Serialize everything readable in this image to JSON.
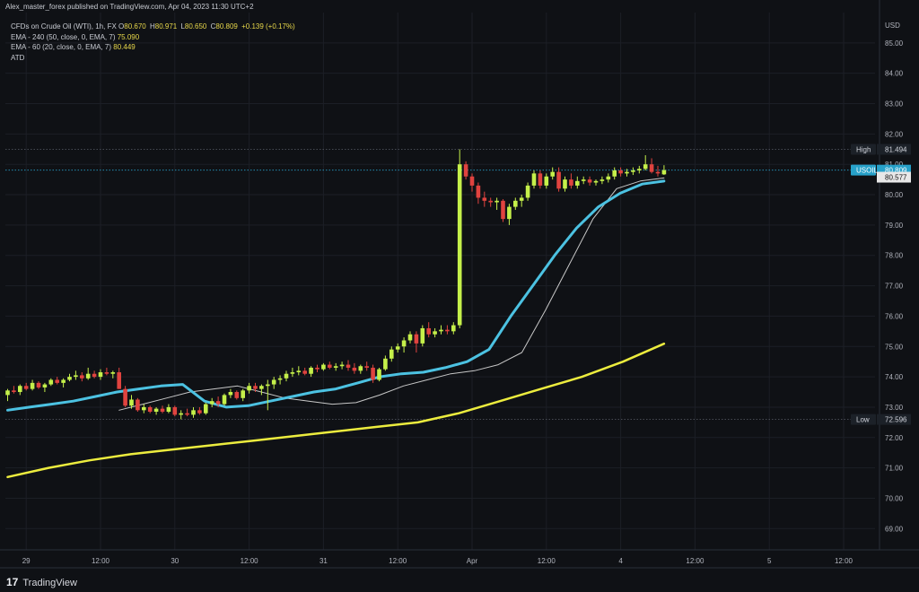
{
  "header": {
    "published": "Alex_master_forex published on TradingView.com, Apr 04, 2023 11:30 UTC+2"
  },
  "legend": {
    "symbol": "CFDs on Crude Oil (WTI), 1h, FX",
    "ohlc": [
      {
        "label": "O",
        "value": "80.670"
      },
      {
        "label": "H",
        "value": "80.971"
      },
      {
        "label": "L",
        "value": "80.650"
      },
      {
        "label": "C",
        "value": "80.809"
      }
    ],
    "change": "+0.139 (+0.17%)",
    "ema240_label": "EMA - 240 (50, close, 0, EMA, 7)",
    "ema240_value": "75.090",
    "ema60_label": "EMA - 60 (20, close, 0, EMA, 7)",
    "ema60_value": "80.449",
    "atd_label": "ATD"
  },
  "footer": {
    "brand": "TradingView"
  },
  "colors": {
    "background": "#0f1115",
    "bull": "#c5f04a",
    "bear": "#e0433f",
    "ema240": "#ecec3e",
    "ema60": "#4cc2e2",
    "ema_thin": "#c8c8c8",
    "axis_text": "#b2b5be",
    "usoil_tag": "#27a1c9"
  },
  "chart_data": {
    "type": "candlestick",
    "ylim": [
      68.3,
      86.0
    ],
    "y_axis_unit": "USD",
    "y_ticks": [
      "69.00",
      "70.00",
      "71.00",
      "72.00",
      "73.00",
      "74.00",
      "75.00",
      "76.00",
      "77.00",
      "78.00",
      "79.00",
      "80.00",
      "81.00",
      "82.00",
      "83.00",
      "84.00",
      "85.00"
    ],
    "x_ticks": [
      "29",
      "12:00",
      "30",
      "12:00",
      "31",
      "12:00",
      "Apr",
      "12:00",
      "4",
      "12:00",
      "5",
      "12:00"
    ],
    "x_tick_index": [
      3,
      15,
      27,
      39,
      51,
      63,
      75,
      87,
      99,
      111,
      123,
      135
    ],
    "high_label": "High",
    "high_value": "81.494",
    "low_label": "Low",
    "low_value": "72.596",
    "usoil_label": "USOIL",
    "usoil_value": "80.809",
    "ema60_axis_value": "80.577",
    "candles": [
      [
        73.4,
        73.6,
        73.2,
        73.55
      ],
      [
        73.55,
        73.7,
        73.45,
        73.5
      ],
      [
        73.5,
        73.75,
        73.4,
        73.7
      ],
      [
        73.7,
        73.8,
        73.55,
        73.6
      ],
      [
        73.6,
        73.9,
        73.55,
        73.8
      ],
      [
        73.8,
        73.85,
        73.6,
        73.65
      ],
      [
        73.65,
        73.8,
        73.5,
        73.75
      ],
      [
        73.75,
        73.95,
        73.7,
        73.9
      ],
      [
        73.9,
        74.0,
        73.75,
        73.8
      ],
      [
        73.8,
        73.95,
        73.65,
        73.9
      ],
      [
        73.9,
        74.1,
        73.85,
        74.0
      ],
      [
        74.0,
        74.2,
        73.9,
        74.05
      ],
      [
        74.05,
        74.15,
        73.85,
        73.95
      ],
      [
        73.95,
        74.3,
        73.9,
        74.1
      ],
      [
        74.1,
        74.2,
        73.95,
        74.0
      ],
      [
        74.0,
        74.25,
        73.9,
        74.15
      ],
      [
        74.15,
        74.3,
        74.05,
        74.1
      ],
      [
        74.1,
        74.2,
        73.95,
        74.15
      ],
      [
        74.15,
        74.3,
        73.6,
        73.6
      ],
      [
        73.6,
        73.7,
        73.0,
        73.05
      ],
      [
        73.05,
        73.4,
        72.95,
        73.25
      ],
      [
        73.25,
        73.3,
        72.85,
        72.9
      ],
      [
        72.9,
        73.1,
        72.8,
        73.0
      ],
      [
        73.0,
        73.05,
        72.8,
        72.85
      ],
      [
        72.85,
        73.0,
        72.75,
        72.95
      ],
      [
        72.95,
        73.05,
        72.8,
        72.85
      ],
      [
        72.85,
        73.1,
        72.8,
        73.0
      ],
      [
        73.0,
        73.05,
        72.7,
        72.75
      ],
      [
        72.75,
        72.9,
        72.6,
        72.8
      ],
      [
        72.8,
        72.95,
        72.7,
        72.75
      ],
      [
        72.75,
        73.0,
        72.65,
        72.9
      ],
      [
        72.9,
        73.0,
        72.75,
        72.8
      ],
      [
        72.8,
        73.15,
        72.75,
        73.1
      ],
      [
        73.1,
        73.3,
        73.0,
        73.2
      ],
      [
        73.2,
        73.35,
        73.0,
        73.1
      ],
      [
        73.1,
        73.45,
        73.05,
        73.4
      ],
      [
        73.4,
        73.6,
        73.3,
        73.5
      ],
      [
        73.5,
        73.55,
        73.25,
        73.3
      ],
      [
        73.3,
        73.6,
        73.2,
        73.55
      ],
      [
        73.55,
        73.8,
        73.45,
        73.7
      ],
      [
        73.7,
        73.8,
        73.5,
        73.6
      ],
      [
        73.6,
        73.75,
        73.4,
        73.7
      ],
      [
        73.7,
        73.9,
        72.9,
        73.75
      ],
      [
        73.75,
        74.0,
        73.6,
        73.9
      ],
      [
        73.9,
        74.05,
        73.75,
        73.95
      ],
      [
        73.95,
        74.2,
        73.85,
        74.1
      ],
      [
        74.1,
        74.3,
        74.0,
        74.15
      ],
      [
        74.15,
        74.35,
        74.05,
        74.2
      ],
      [
        74.2,
        74.3,
        74.05,
        74.1
      ],
      [
        74.1,
        74.35,
        74.0,
        74.3
      ],
      [
        74.3,
        74.4,
        74.15,
        74.25
      ],
      [
        74.25,
        74.45,
        74.2,
        74.4
      ],
      [
        74.4,
        74.5,
        74.25,
        74.3
      ],
      [
        74.3,
        74.45,
        74.2,
        74.35
      ],
      [
        74.35,
        74.5,
        74.25,
        74.4
      ],
      [
        74.4,
        74.55,
        74.2,
        74.3
      ],
      [
        74.3,
        74.45,
        74.1,
        74.2
      ],
      [
        74.2,
        74.4,
        74.1,
        74.35
      ],
      [
        74.35,
        74.5,
        74.2,
        74.3
      ],
      [
        74.3,
        74.4,
        73.8,
        73.9
      ],
      [
        73.9,
        74.3,
        73.85,
        74.25
      ],
      [
        74.25,
        74.7,
        74.2,
        74.6
      ],
      [
        74.6,
        75.0,
        74.5,
        74.9
      ],
      [
        74.9,
        75.1,
        74.8,
        75.0
      ],
      [
        75.0,
        75.3,
        74.8,
        75.2
      ],
      [
        75.2,
        75.5,
        75.1,
        75.4
      ],
      [
        75.4,
        75.5,
        74.8,
        75.1
      ],
      [
        75.1,
        75.7,
        75.0,
        75.6
      ],
      [
        75.6,
        75.8,
        75.3,
        75.4
      ],
      [
        75.4,
        75.6,
        75.3,
        75.5
      ],
      [
        75.5,
        75.7,
        75.4,
        75.55
      ],
      [
        75.55,
        75.7,
        75.4,
        75.5
      ],
      [
        75.5,
        75.8,
        75.4,
        75.7
      ],
      [
        75.7,
        81.494,
        75.6,
        81.0
      ],
      [
        81.0,
        81.1,
        80.5,
        80.6
      ],
      [
        80.6,
        80.7,
        80.1,
        80.3
      ],
      [
        80.3,
        80.4,
        79.7,
        79.9
      ],
      [
        79.9,
        80.1,
        79.6,
        79.8
      ],
      [
        79.8,
        79.9,
        79.6,
        79.75
      ],
      [
        79.75,
        79.9,
        79.5,
        79.8
      ],
      [
        79.8,
        79.85,
        79.1,
        79.2
      ],
      [
        79.2,
        79.7,
        79.0,
        79.6
      ],
      [
        79.6,
        79.9,
        79.5,
        79.8
      ],
      [
        79.8,
        80.0,
        79.6,
        79.9
      ],
      [
        79.9,
        80.4,
        79.8,
        80.3
      ],
      [
        80.3,
        80.8,
        80.2,
        80.7
      ],
      [
        80.7,
        80.8,
        80.2,
        80.3
      ],
      [
        80.3,
        80.7,
        80.2,
        80.6
      ],
      [
        80.6,
        80.9,
        80.5,
        80.75
      ],
      [
        80.75,
        80.9,
        80.1,
        80.2
      ],
      [
        80.2,
        80.6,
        80.1,
        80.5
      ],
      [
        80.5,
        80.7,
        80.2,
        80.3
      ],
      [
        80.3,
        80.6,
        80.2,
        80.45
      ],
      [
        80.45,
        80.6,
        80.35,
        80.5
      ],
      [
        80.5,
        80.6,
        80.3,
        80.4
      ],
      [
        80.4,
        80.5,
        80.3,
        80.45
      ],
      [
        80.45,
        80.6,
        80.35,
        80.5
      ],
      [
        80.5,
        80.7,
        80.4,
        80.6
      ],
      [
        80.6,
        80.9,
        80.5,
        80.8
      ],
      [
        80.8,
        80.9,
        80.6,
        80.7
      ],
      [
        80.7,
        80.85,
        80.6,
        80.75
      ],
      [
        80.75,
        80.9,
        80.65,
        80.8
      ],
      [
        80.8,
        80.95,
        80.7,
        80.85
      ],
      [
        80.85,
        81.3,
        80.8,
        81.0
      ],
      [
        81.0,
        81.2,
        80.7,
        80.75
      ],
      [
        80.75,
        80.95,
        80.6,
        80.7
      ],
      [
        80.67,
        80.971,
        80.65,
        80.809
      ]
    ],
    "ema60": [
      72.9,
      73.0,
      73.1,
      73.2,
      73.35,
      73.5,
      73.6,
      73.7,
      73.75,
      73.2,
      73.0,
      73.05,
      73.2,
      73.35,
      73.5,
      73.6,
      73.8,
      74.0,
      74.1,
      74.15,
      74.3,
      74.5,
      74.9,
      76.0,
      77.0,
      78.0,
      78.9,
      79.6,
      80.05,
      80.35,
      80.449
    ],
    "ema240": [
      70.7,
      71.0,
      71.25,
      71.45,
      71.6,
      71.75,
      71.9,
      72.05,
      72.2,
      72.35,
      72.5,
      72.8,
      73.2,
      73.6,
      74.0,
      74.5,
      75.09
    ],
    "ema_thin": [
      72.9,
      73.1,
      73.3,
      73.5,
      73.6,
      73.7,
      73.5,
      73.3,
      73.2,
      73.1,
      73.15,
      73.4,
      73.7,
      73.9,
      74.1,
      74.2,
      74.4,
      74.8,
      76.2,
      77.7,
      79.2,
      80.2,
      80.45,
      80.55
    ]
  }
}
